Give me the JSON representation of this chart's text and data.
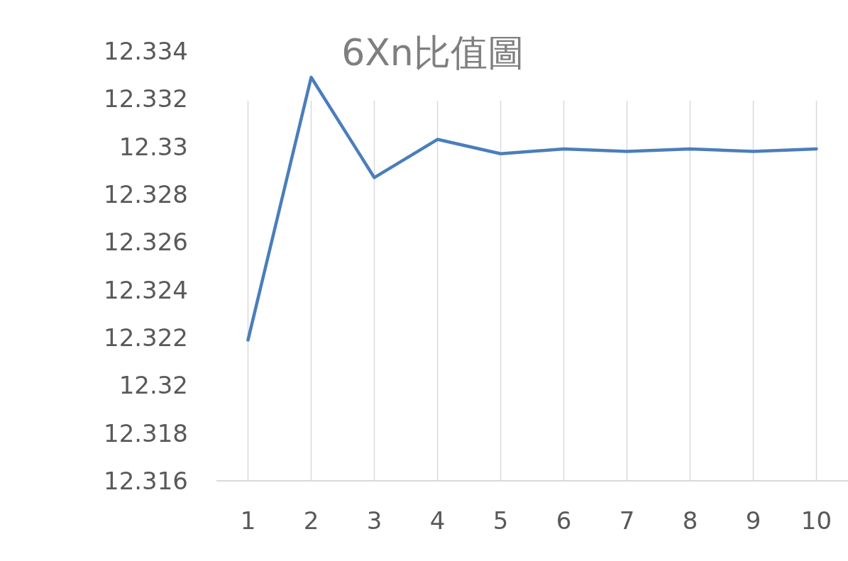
{
  "chart_data": {
    "type": "line",
    "title": "6Xn比值圖",
    "categories": [
      "1",
      "2",
      "3",
      "4",
      "5",
      "6",
      "7",
      "8",
      "9",
      "10"
    ],
    "series": [
      {
        "color": "#4a7ebb",
        "values": [
          12.3219,
          12.3329,
          12.3287,
          12.3303,
          12.3297,
          12.3299,
          12.3298,
          12.3299,
          12.3298,
          12.3299
        ]
      }
    ],
    "ylim": [
      12.316,
      12.334
    ],
    "yticks": [
      12.316,
      12.318,
      12.32,
      12.322,
      12.324,
      12.326,
      12.328,
      12.33,
      12.332,
      12.334
    ],
    "grid": "x",
    "marker": "none",
    "line_style": "solid"
  }
}
